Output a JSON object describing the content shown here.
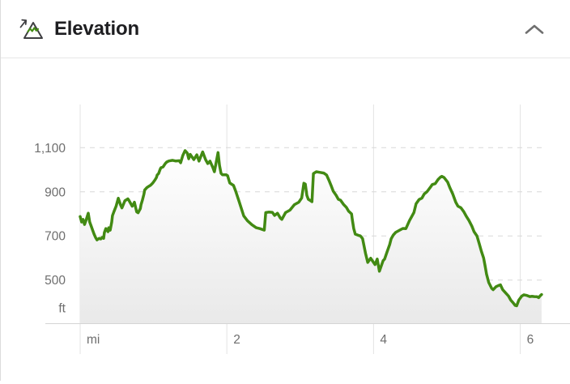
{
  "header": {
    "title": "Elevation",
    "icon": "elevation-mountain-icon",
    "collapse_icon": "chevron-up-icon"
  },
  "colors": {
    "line_green": "#428a13",
    "icon_zigzag_green": "#428a13",
    "grid_vertical": "#e3e3e3",
    "grid_dashed": "#d8d8d8",
    "axis_line": "#d4d4d4",
    "tick_label": "#6e6e6e",
    "title_text": "#1e1e21",
    "chevron": "#6f6f6f",
    "fill_top": "#ffffff",
    "fill_bottom": "#e9e9e9"
  },
  "chart_data": {
    "type": "area",
    "title": "Elevation profile",
    "x_unit": "mi",
    "y_unit": "ft",
    "x_ticks": [
      {
        "label": "mi",
        "mile": 0
      },
      {
        "label": "2",
        "mile": 2
      },
      {
        "label": "4",
        "mile": 4
      },
      {
        "label": "6",
        "mile": 6
      }
    ],
    "y_ticks": [
      {
        "label": "1,100",
        "value": 1100
      },
      {
        "label": "900",
        "value": 900
      },
      {
        "label": "700",
        "value": 700
      },
      {
        "label": "500",
        "value": 500
      },
      {
        "label": "ft",
        "value": null
      }
    ],
    "xlim_mi": [
      0,
      6.3
    ],
    "ylim_ft": [
      304,
      1296
    ],
    "grid": "horizontal-dashed, vertical-solid",
    "points": [
      [
        0.0,
        788
      ],
      [
        0.02,
        763
      ],
      [
        0.04,
        775
      ],
      [
        0.06,
        752
      ],
      [
        0.08,
        770
      ],
      [
        0.11,
        803
      ],
      [
        0.13,
        763
      ],
      [
        0.15,
        745
      ],
      [
        0.17,
        726
      ],
      [
        0.19,
        708
      ],
      [
        0.21,
        693
      ],
      [
        0.23,
        682
      ],
      [
        0.26,
        689
      ],
      [
        0.28,
        686
      ],
      [
        0.3,
        693
      ],
      [
        0.32,
        689
      ],
      [
        0.33,
        715
      ],
      [
        0.35,
        733
      ],
      [
        0.38,
        719
      ],
      [
        0.39,
        737
      ],
      [
        0.41,
        726
      ],
      [
        0.43,
        763
      ],
      [
        0.44,
        792
      ],
      [
        0.46,
        810
      ],
      [
        0.49,
        835
      ],
      [
        0.52,
        871
      ],
      [
        0.55,
        842
      ],
      [
        0.57,
        827
      ],
      [
        0.61,
        860
      ],
      [
        0.65,
        868
      ],
      [
        0.66,
        864
      ],
      [
        0.71,
        835
      ],
      [
        0.72,
        839
      ],
      [
        0.74,
        853
      ],
      [
        0.77,
        809
      ],
      [
        0.79,
        805
      ],
      [
        0.82,
        824
      ],
      [
        0.83,
        842
      ],
      [
        0.85,
        864
      ],
      [
        0.87,
        890
      ],
      [
        0.88,
        908
      ],
      [
        0.91,
        919
      ],
      [
        0.94,
        926
      ],
      [
        0.96,
        930
      ],
      [
        0.99,
        940
      ],
      [
        1.02,
        954
      ],
      [
        1.04,
        965
      ],
      [
        1.05,
        976
      ],
      [
        1.07,
        983
      ],
      [
        1.09,
        1002
      ],
      [
        1.1,
        1009
      ],
      [
        1.13,
        1013
      ],
      [
        1.16,
        1028
      ],
      [
        1.18,
        1035
      ],
      [
        1.21,
        1040
      ],
      [
        1.26,
        1043
      ],
      [
        1.3,
        1040
      ],
      [
        1.35,
        1041
      ],
      [
        1.37,
        1032
      ],
      [
        1.4,
        1065
      ],
      [
        1.43,
        1087
      ],
      [
        1.46,
        1076
      ],
      [
        1.48,
        1050
      ],
      [
        1.5,
        1070
      ],
      [
        1.55,
        1046
      ],
      [
        1.59,
        1068
      ],
      [
        1.62,
        1039
      ],
      [
        1.67,
        1081
      ],
      [
        1.71,
        1046
      ],
      [
        1.74,
        1028
      ],
      [
        1.77,
        1039
      ],
      [
        1.81,
        1009
      ],
      [
        1.83,
        991
      ],
      [
        1.88,
        1078
      ],
      [
        1.9,
        1020
      ],
      [
        1.92,
        984
      ],
      [
        1.94,
        977
      ],
      [
        1.99,
        977
      ],
      [
        2.01,
        973
      ],
      [
        2.04,
        940
      ],
      [
        2.09,
        929
      ],
      [
        2.12,
        903
      ],
      [
        2.17,
        853
      ],
      [
        2.23,
        791
      ],
      [
        2.28,
        769
      ],
      [
        2.34,
        751
      ],
      [
        2.4,
        737
      ],
      [
        2.45,
        733
      ],
      [
        2.51,
        726
      ],
      [
        2.53,
        806
      ],
      [
        2.57,
        808
      ],
      [
        2.62,
        807
      ],
      [
        2.65,
        793
      ],
      [
        2.69,
        803
      ],
      [
        2.73,
        781
      ],
      [
        2.75,
        775
      ],
      [
        2.8,
        806
      ],
      [
        2.86,
        817
      ],
      [
        2.92,
        842
      ],
      [
        2.98,
        853
      ],
      [
        3.02,
        872
      ],
      [
        3.05,
        939
      ],
      [
        3.07,
        935
      ],
      [
        3.09,
        884
      ],
      [
        3.11,
        866
      ],
      [
        3.13,
        862
      ],
      [
        3.16,
        855
      ],
      [
        3.18,
        983
      ],
      [
        3.22,
        991
      ],
      [
        3.27,
        988
      ],
      [
        3.32,
        985
      ],
      [
        3.36,
        976
      ],
      [
        3.39,
        954
      ],
      [
        3.42,
        929
      ],
      [
        3.45,
        903
      ],
      [
        3.49,
        884
      ],
      [
        3.52,
        866
      ],
      [
        3.55,
        862
      ],
      [
        3.59,
        843
      ],
      [
        3.63,
        829
      ],
      [
        3.66,
        812
      ],
      [
        3.7,
        800
      ],
      [
        3.71,
        775
      ],
      [
        3.73,
        733
      ],
      [
        3.75,
        708
      ],
      [
        3.79,
        703
      ],
      [
        3.82,
        700
      ],
      [
        3.85,
        688
      ],
      [
        3.89,
        622
      ],
      [
        3.92,
        580
      ],
      [
        3.96,
        599
      ],
      [
        4.02,
        570
      ],
      [
        4.05,
        595
      ],
      [
        4.08,
        540
      ],
      [
        4.13,
        588
      ],
      [
        4.15,
        595
      ],
      [
        4.18,
        624
      ],
      [
        4.22,
        661
      ],
      [
        4.24,
        687
      ],
      [
        4.27,
        705
      ],
      [
        4.3,
        716
      ],
      [
        4.36,
        727
      ],
      [
        4.4,
        734
      ],
      [
        4.44,
        733
      ],
      [
        4.49,
        770
      ],
      [
        4.55,
        806
      ],
      [
        4.58,
        846
      ],
      [
        4.62,
        865
      ],
      [
        4.66,
        872
      ],
      [
        4.69,
        890
      ],
      [
        4.73,
        901
      ],
      [
        4.77,
        919
      ],
      [
        4.8,
        933
      ],
      [
        4.84,
        937
      ],
      [
        4.88,
        956
      ],
      [
        4.91,
        966
      ],
      [
        4.93,
        970
      ],
      [
        4.96,
        965
      ],
      [
        5.01,
        944
      ],
      [
        5.04,
        919
      ],
      [
        5.08,
        890
      ],
      [
        5.12,
        853
      ],
      [
        5.15,
        835
      ],
      [
        5.19,
        828
      ],
      [
        5.23,
        810
      ],
      [
        5.26,
        791
      ],
      [
        5.3,
        770
      ],
      [
        5.34,
        744
      ],
      [
        5.37,
        719
      ],
      [
        5.41,
        700
      ],
      [
        5.44,
        665
      ],
      [
        5.47,
        630
      ],
      [
        5.5,
        600
      ],
      [
        5.52,
        565
      ],
      [
        5.54,
        527
      ],
      [
        5.57,
        489
      ],
      [
        5.61,
        462
      ],
      [
        5.63,
        456
      ],
      [
        5.67,
        470
      ],
      [
        5.71,
        476
      ],
      [
        5.73,
        478
      ],
      [
        5.76,
        456
      ],
      [
        5.79,
        445
      ],
      [
        5.84,
        427
      ],
      [
        5.87,
        409
      ],
      [
        5.9,
        398
      ],
      [
        5.93,
        385
      ],
      [
        5.95,
        383
      ],
      [
        5.98,
        409
      ],
      [
        6.02,
        427
      ],
      [
        6.05,
        433
      ],
      [
        6.09,
        430
      ],
      [
        6.13,
        425
      ],
      [
        6.16,
        426
      ],
      [
        6.19,
        425
      ],
      [
        6.23,
        424
      ],
      [
        6.25,
        420
      ],
      [
        6.27,
        428
      ],
      [
        6.29,
        434
      ]
    ]
  }
}
